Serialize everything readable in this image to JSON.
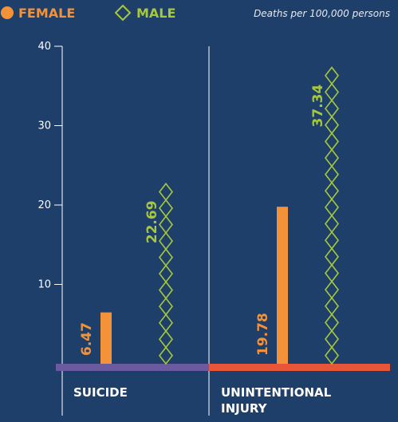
{
  "legend": {
    "female_label": "FEMALE",
    "male_label": "MALE",
    "note": "Deaths per 100,000 persons"
  },
  "colors": {
    "background": "#1f3f6b",
    "female": "#f4923a",
    "male": "#a6c83a",
    "suicide_baseline": "#6a5aa0",
    "injury_baseline": "#e8563a"
  },
  "chart_data": {
    "type": "bar",
    "categories": [
      "SUICIDE",
      "UNINTENTIONAL INJURY"
    ],
    "category_lines": [
      [
        "SUICIDE"
      ],
      [
        "UNINTENTIONAL",
        "INJURY"
      ]
    ],
    "series": [
      {
        "name": "FEMALE",
        "values": [
          6.47,
          19.78
        ],
        "labels": [
          "6.47",
          "19.78"
        ]
      },
      {
        "name": "MALE",
        "values": [
          22.69,
          37.34
        ],
        "labels": [
          "22.69",
          "37.34"
        ]
      }
    ],
    "ylim": [
      0,
      40
    ],
    "yticks": [
      10,
      20,
      30,
      40
    ],
    "ytick_labels": [
      "10",
      "20",
      "30",
      "40"
    ],
    "ylabel": "Deaths per 100,000 persons",
    "xlabel": "",
    "grid": false
  }
}
